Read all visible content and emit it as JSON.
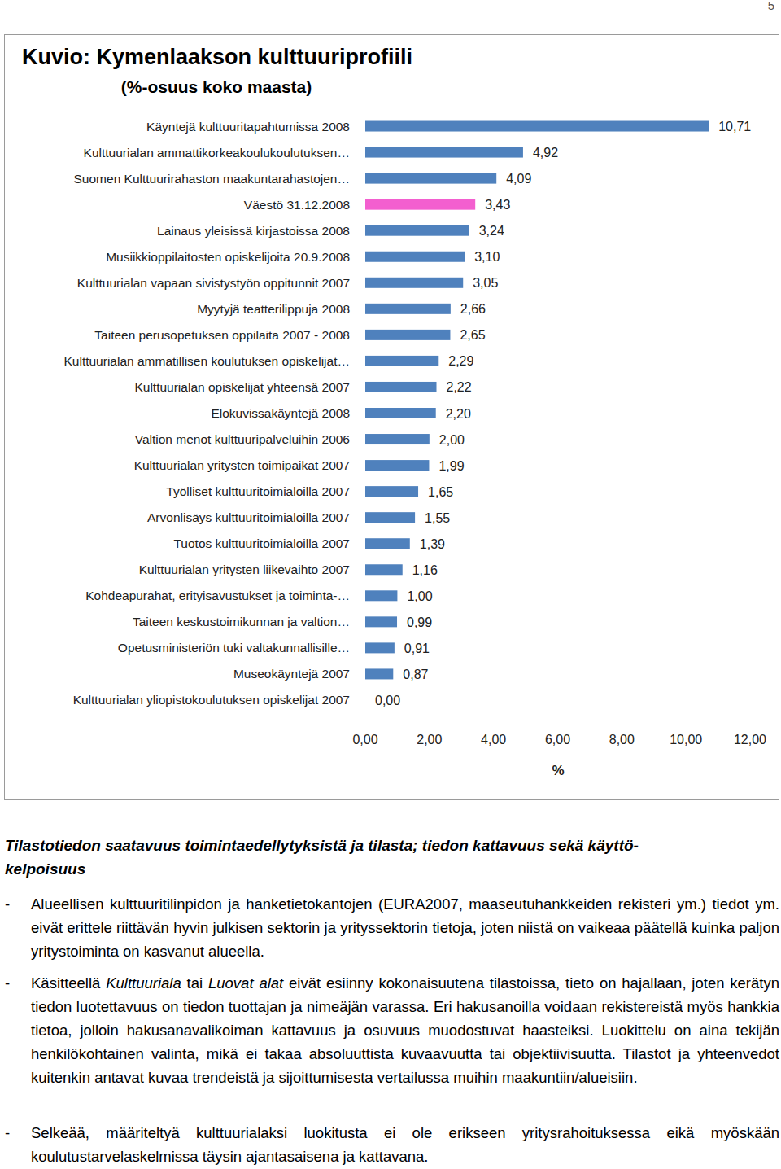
{
  "page_number": "5",
  "chart_data": {
    "type": "bar",
    "orientation": "horizontal",
    "title": "Kuvio: Kymenlaakson kulttuuriprofiili",
    "subtitle": "(%-osuus koko maasta)",
    "x_label": "%",
    "categories": [
      "Käyntejä kulttuuritapahtumissa 2008",
      "Kulttuurialan ammattikorkeakoulukoulutuksen…",
      "Suomen Kulttuurirahaston maakuntarahastojen…",
      "Väestö 31.12.2008",
      "Lainaus yleisissä kirjastoissa 2008",
      "Musiikkioppilaitosten opiskelijoita 20.9.2008",
      "Kulttuurialan vapaan sivistystyön oppitunnit 2007",
      "Myytyjä teatterilippuja 2008",
      "Taiteen perusopetuksen oppilaita 2007 - 2008",
      "Kulttuurialan ammatillisen koulutuksen opiskelijat…",
      "Kulttuurialan opiskelijat yhteensä 2007",
      "Elokuvissakäyntejä 2008",
      "Valtion menot kulttuuripalveluihin 2006",
      "Kulttuurialan yritysten toimipaikat 2007",
      "Työlliset kulttuuritoimialoilla 2007",
      "Arvonlisäys kulttuuritoimialoilla 2007",
      "Tuotos kulttuuritoimialoilla 2007",
      "Kulttuurialan yritysten liikevaihto 2007",
      "Kohdeapurahat, erityisavustukset ja toiminta-…",
      "Taiteen keskustoimikunnan ja valtion…",
      "Opetusministeriön tuki valtakunnallisille…",
      "Museokäyntejä 2007",
      "Kulttuurialan yliopistokoulutuksen opiskelijat 2007"
    ],
    "values": [
      10.71,
      4.92,
      4.09,
      3.43,
      3.24,
      3.1,
      3.05,
      2.66,
      2.65,
      2.29,
      2.22,
      2.2,
      2.0,
      1.99,
      1.65,
      1.55,
      1.39,
      1.16,
      1.0,
      0.99,
      0.91,
      0.87,
      0.0
    ],
    "value_labels": [
      "10,71",
      "4,92",
      "4,09",
      "3,43",
      "3,24",
      "3,10",
      "3,05",
      "2,66",
      "2,65",
      "2,29",
      "2,22",
      "2,20",
      "2,00",
      "1,99",
      "1,65",
      "1,55",
      "1,39",
      "1,16",
      "1,00",
      "0,99",
      "0,91",
      "0,87",
      "0,00"
    ],
    "colors": [
      "#4f81bd",
      "#4f81bd",
      "#4f81bd",
      "#f35fcf",
      "#4f81bd",
      "#4f81bd",
      "#4f81bd",
      "#4f81bd",
      "#4f81bd",
      "#4f81bd",
      "#4f81bd",
      "#4f81bd",
      "#4f81bd",
      "#4f81bd",
      "#4f81bd",
      "#4f81bd",
      "#4f81bd",
      "#4f81bd",
      "#4f81bd",
      "#4f81bd",
      "#4f81bd",
      "#4f81bd",
      "#4f81bd"
    ],
    "data_labels": true,
    "grid": false,
    "xlim": [
      0,
      12
    ],
    "xticks": [
      {
        "value": 0,
        "label": "0,00"
      },
      {
        "value": 2,
        "label": "2,00"
      },
      {
        "value": 4,
        "label": "4,00"
      },
      {
        "value": 6,
        "label": "6,00"
      },
      {
        "value": 8,
        "label": "8,00"
      },
      {
        "value": 10,
        "label": "10,00"
      },
      {
        "value": 12,
        "label": "12,00"
      }
    ]
  },
  "text_section": {
    "heading_lines": [
      "Tilastotiedon saatavuus toimintaedellytyksistä ja tilasta; tiedon kattavuus sekä käyttö-",
      "kelpoisuus"
    ],
    "bullet_marker": "-",
    "bullets": [
      [
        "Alueellisen kulttuuritilinpidon ja hanketietokantojen (EURA2007, maaseutuhankkeiden rekisteri ym.) tiedot ym. eivät erittele riittävän hyvin julkisen sektorin ja yrityssektorin tietoja, joten niistä on vaikeaa päätellä kuinka paljon yritystoiminta on kasvanut alueella."
      ],
      [
        "Käsitteellä ",
        "Kulttuuriala",
        " tai ",
        "Luovat alat",
        " eivät esiinny kokonaisuutena tilastoissa, tieto on hajallaan, joten kerätyn tiedon luotettavuus on tiedon tuottajan ja nimeäjän varassa. Eri hakusanoilla voidaan rekistereistä myös hankkia tietoa, jolloin hakusanavalikoiman kattavuus ja osuvuus muodostuvat haasteiksi. Luokittelu on aina tekijän henkilökohtainen valinta, mikä ei takaa absoluuttista kuvaavuutta tai objektiivisuutta. Tilastot ja yhteenvedot kuitenkin antavat kuvaa trendeistä ja sijoittumisesta vertailussa muihin maakuntiin/alueisiin."
      ],
      [
        "Selkeää, määriteltyä kulttuurialaksi luokitusta ei ole erikseen yritysrahoituksessa eikä myöskään koulutustarvelaskelmissa täysin ajantasaisena ja kattavana."
      ]
    ]
  }
}
